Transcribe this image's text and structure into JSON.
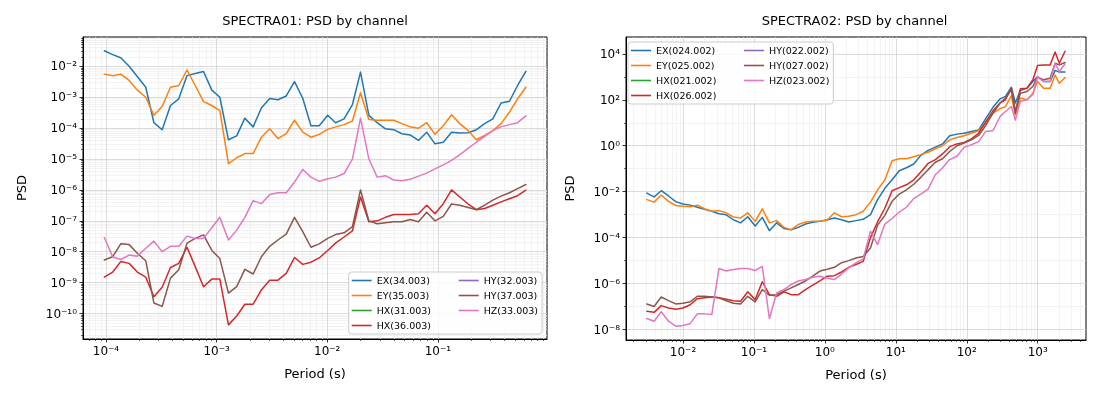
{
  "chart_data": [
    {
      "type": "line",
      "title": "SPECTRA01: PSD by channel",
      "xlabel": "Period (s)",
      "ylabel": "PSD",
      "log": "xy",
      "grid": true,
      "legend": "bottom right",
      "marker": "none",
      "line_style": "solid",
      "xlim": [
        6.2e-05,
        0.97
      ],
      "ylim": [
        1.5e-11,
        0.089
      ],
      "xticks": [
        {
          "value": 7e-05,
          "label": null
        },
        {
          "value": 8e-05,
          "label": null
        },
        {
          "value": 9e-05,
          "label": null
        },
        {
          "value": 0.0001,
          "label": "10⁻⁴"
        },
        {
          "value": 0.0002,
          "label": null
        },
        {
          "value": 0.0003,
          "label": null
        },
        {
          "value": 0.0004,
          "label": null
        },
        {
          "value": 0.0005,
          "label": null
        },
        {
          "value": 0.0006,
          "label": null
        },
        {
          "value": 0.0007,
          "label": null
        },
        {
          "value": 0.0008,
          "label": null
        },
        {
          "value": 0.0009,
          "label": null
        },
        {
          "value": 0.001,
          "label": "10⁻³"
        },
        {
          "value": 0.002,
          "label": null
        },
        {
          "value": 0.003,
          "label": null
        },
        {
          "value": 0.004,
          "label": null
        },
        {
          "value": 0.005,
          "label": null
        },
        {
          "value": 0.006,
          "label": null
        },
        {
          "value": 0.007,
          "label": null
        },
        {
          "value": 0.008,
          "label": null
        },
        {
          "value": 0.009,
          "label": null
        },
        {
          "value": 0.01,
          "label": "10⁻²"
        },
        {
          "value": 0.02,
          "label": null
        },
        {
          "value": 0.03,
          "label": null
        },
        {
          "value": 0.04,
          "label": null
        },
        {
          "value": 0.05,
          "label": null
        },
        {
          "value": 0.06,
          "label": null
        },
        {
          "value": 0.07,
          "label": null
        },
        {
          "value": 0.08,
          "label": null
        },
        {
          "value": 0.09,
          "label": null
        },
        {
          "value": 0.1,
          "label": "10⁻¹"
        },
        {
          "value": 0.2,
          "label": null
        },
        {
          "value": 0.3,
          "label": null
        },
        {
          "value": 0.4,
          "label": null
        },
        {
          "value": 0.5,
          "label": null
        },
        {
          "value": 0.6,
          "label": null
        },
        {
          "value": 0.7,
          "label": null
        },
        {
          "value": 0.8,
          "label": null
        },
        {
          "value": 0.9,
          "label": null
        }
      ],
      "yticks": [
        {
          "value": 2e-11,
          "label": null
        },
        {
          "value": 3e-11,
          "label": null
        },
        {
          "value": 4e-11,
          "label": null
        },
        {
          "value": 5e-11,
          "label": null
        },
        {
          "value": 6e-11,
          "label": null
        },
        {
          "value": 7e-11,
          "label": null
        },
        {
          "value": 8e-11,
          "label": null
        },
        {
          "value": 9e-11,
          "label": null
        },
        {
          "value": 1e-10,
          "label": "10⁻¹⁰"
        },
        {
          "value": 2e-10,
          "label": null
        },
        {
          "value": 3e-10,
          "label": null
        },
        {
          "value": 4e-10,
          "label": null
        },
        {
          "value": 5e-10,
          "label": null
        },
        {
          "value": 6e-10,
          "label": null
        },
        {
          "value": 7e-10,
          "label": null
        },
        {
          "value": 8e-10,
          "label": null
        },
        {
          "value": 9e-10,
          "label": null
        },
        {
          "value": 1e-09,
          "label": "10⁻⁹"
        },
        {
          "value": 2e-09,
          "label": null
        },
        {
          "value": 3e-09,
          "label": null
        },
        {
          "value": 4e-09,
          "label": null
        },
        {
          "value": 5e-09,
          "label": null
        },
        {
          "value": 6e-09,
          "label": null
        },
        {
          "value": 7e-09,
          "label": null
        },
        {
          "value": 8e-09,
          "label": null
        },
        {
          "value": 9e-09,
          "label": null
        },
        {
          "value": 1e-08,
          "label": "10⁻⁸"
        },
        {
          "value": 2e-08,
          "label": null
        },
        {
          "value": 3e-08,
          "label": null
        },
        {
          "value": 4e-08,
          "label": null
        },
        {
          "value": 5e-08,
          "label": null
        },
        {
          "value": 6e-08,
          "label": null
        },
        {
          "value": 7e-08,
          "label": null
        },
        {
          "value": 8e-08,
          "label": null
        },
        {
          "value": 9e-08,
          "label": null
        },
        {
          "value": 1e-07,
          "label": "10⁻⁷"
        },
        {
          "value": 2e-07,
          "label": null
        },
        {
          "value": 3e-07,
          "label": null
        },
        {
          "value": 4e-07,
          "label": null
        },
        {
          "value": 5e-07,
          "label": null
        },
        {
          "value": 6e-07,
          "label": null
        },
        {
          "value": 7e-07,
          "label": null
        },
        {
          "value": 8e-07,
          "label": null
        },
        {
          "value": 9e-07,
          "label": null
        },
        {
          "value": 1e-06,
          "label": "10⁻⁶"
        },
        {
          "value": 2e-06,
          "label": null
        },
        {
          "value": 3e-06,
          "label": null
        },
        {
          "value": 4e-06,
          "label": null
        },
        {
          "value": 5e-06,
          "label": null
        },
        {
          "value": 6e-06,
          "label": null
        },
        {
          "value": 7e-06,
          "label": null
        },
        {
          "value": 8e-06,
          "label": null
        },
        {
          "value": 9e-06,
          "label": null
        },
        {
          "value": 1e-05,
          "label": "10⁻⁵"
        },
        {
          "value": 2e-05,
          "label": null
        },
        {
          "value": 3e-05,
          "label": null
        },
        {
          "value": 4e-05,
          "label": null
        },
        {
          "value": 5e-05,
          "label": null
        },
        {
          "value": 6e-05,
          "label": null
        },
        {
          "value": 7e-05,
          "label": null
        },
        {
          "value": 8e-05,
          "label": null
        },
        {
          "value": 9e-05,
          "label": null
        },
        {
          "value": 0.0001,
          "label": "10⁻⁴"
        },
        {
          "value": 0.0002,
          "label": null
        },
        {
          "value": 0.0003,
          "label": null
        },
        {
          "value": 0.0004,
          "label": null
        },
        {
          "value": 0.0005,
          "label": null
        },
        {
          "value": 0.0006,
          "label": null
        },
        {
          "value": 0.0007,
          "label": null
        },
        {
          "value": 0.0008,
          "label": null
        },
        {
          "value": 0.0009,
          "label": null
        },
        {
          "value": 0.001,
          "label": "10⁻³"
        },
        {
          "value": 0.002,
          "label": null
        },
        {
          "value": 0.003,
          "label": null
        },
        {
          "value": 0.004,
          "label": null
        },
        {
          "value": 0.005,
          "label": null
        },
        {
          "value": 0.006,
          "label": null
        },
        {
          "value": 0.007,
          "label": null
        },
        {
          "value": 0.008,
          "label": null
        },
        {
          "value": 0.009,
          "label": null
        },
        {
          "value": 0.01,
          "label": "10⁻²"
        },
        {
          "value": 0.02,
          "label": null
        },
        {
          "value": 0.03,
          "label": null
        },
        {
          "value": 0.04,
          "label": null
        },
        {
          "value": 0.05,
          "label": null
        },
        {
          "value": 0.06,
          "label": null
        },
        {
          "value": 0.07,
          "label": null
        },
        {
          "value": 0.08,
          "label": null
        }
      ],
      "x": [
        9.66e-05,
        0.000115,
        0.000136,
        0.000162,
        0.000192,
        0.000229,
        0.000271,
        0.000322,
        0.000383,
        0.000455,
        0.00054,
        0.000641,
        0.000762,
        0.000905,
        0.00107,
        0.00128,
        0.00152,
        0.0018,
        0.00214,
        0.00254,
        0.00302,
        0.00358,
        0.00426,
        0.00506,
        0.00601,
        0.00713,
        0.00847,
        0.0101,
        0.0119,
        0.0142,
        0.0169,
        0.02,
        0.0238,
        0.0283,
        0.0336,
        0.0399,
        0.0473,
        0.0562,
        0.0668,
        0.0793,
        0.0942,
        0.112,
        0.133,
        0.158,
        0.188,
        0.223,
        0.265,
        0.314,
        0.373,
        0.444,
        0.526,
        0.625
      ],
      "series": [
        {
          "name": "EX(34.003)",
          "color": "#1f77b4",
          "values": [
            0.032,
            0.024,
            0.019,
            0.01,
            0.0047,
            0.0021,
            0.00015,
            8.9e-05,
            0.00054,
            0.00089,
            0.005,
            0.0059,
            0.0068,
            0.0017,
            0.001,
            4.2e-05,
            5.6e-05,
            0.00021,
            0.00011,
            0.00045,
            0.00091,
            0.00083,
            0.0011,
            0.0032,
            0.00093,
            0.00012,
            0.00012,
            0.00026,
            0.00015,
            0.0002,
            0.00058,
            0.0065,
            0.00026,
            0.00015,
            9.5e-05,
            8.9e-05,
            6.6e-05,
            6e-05,
            4e-05,
            7.4e-05,
            3.1e-05,
            3.5e-05,
            7.4e-05,
            6.9e-05,
            7.1e-05,
            8.9e-05,
            0.00014,
            0.0002,
            0.00065,
            0.00074,
            0.0024,
            0.0069
          ]
        },
        {
          "name": "EY(35.003)",
          "color": "#ff7f0e",
          "values": [
            0.0056,
            0.005,
            0.0056,
            0.0035,
            0.0017,
            0.001,
            0.00026,
            0.0005,
            0.0021,
            0.0024,
            0.0076,
            0.0024,
            0.00072,
            0.00054,
            0.00037,
            7.1e-06,
            1.1e-05,
            1.5e-05,
            1.5e-05,
            5.1e-05,
            9.5e-05,
            4.6e-05,
            6.6e-05,
            0.00018,
            7.4e-05,
            5.1e-05,
            6.3e-05,
            9.1e-05,
            0.00011,
            0.00013,
            0.00017,
            0.0014,
            0.00019,
            0.00018,
            0.00018,
            0.00018,
            0.00014,
            0.00011,
            0.0001,
            0.00015,
            6.3e-05,
            0.00012,
            0.00027,
            0.00014,
            8.3e-05,
            4.2e-05,
            5.8e-05,
            8.3e-05,
            0.00014,
            0.00033,
            0.00089,
            0.0021
          ]
        },
        {
          "name": "HX(31.003)",
          "color": "#2ca02c",
          "values": [
            null,
            null,
            null,
            null,
            null,
            null,
            null,
            null,
            null,
            null,
            null,
            null,
            null,
            null,
            null,
            null,
            null,
            null,
            null,
            null,
            null,
            null,
            null,
            null,
            null,
            null,
            null,
            null,
            null,
            null,
            null,
            null,
            null,
            null,
            null,
            null,
            null,
            null,
            null,
            null,
            null,
            null,
            null,
            null,
            null,
            null,
            null,
            null,
            null,
            null,
            null,
            null
          ]
        },
        {
          "name": "HX(36.003)",
          "color": "#d62728",
          "values": [
            1.5e-09,
            2.2e-09,
            4.8e-09,
            4.2e-09,
            2.2e-09,
            1.5e-09,
            3.5e-10,
            7.1e-10,
            3.1e-09,
            4.2e-09,
            1.4e-08,
            3.3e-09,
            7.4e-10,
            1.3e-09,
            1.3e-09,
            4.3e-11,
            8.3e-11,
            2e-10,
            2e-10,
            5.8e-10,
            1.2e-09,
            1.2e-09,
            2e-09,
            6.5e-09,
            3.9e-09,
            4.6e-09,
            6.3e-09,
            1.1e-08,
            1.9e-08,
            3e-08,
            4.7e-08,
            5.9e-07,
            9.3e-08,
            1e-07,
            1.3e-07,
            1.6e-07,
            1.6e-07,
            1.6e-07,
            1.7e-07,
            3.2e-07,
            1.7e-07,
            3.6e-07,
            1e-06,
            5.9e-07,
            3.5e-07,
            2.3e-07,
            2.5e-07,
            3.2e-07,
            4.1e-07,
            5.2e-07,
            6.5e-07,
            9.8e-07
          ]
        },
        {
          "name": "HY(32.003)",
          "color": "#9467bd",
          "values": [
            null,
            null,
            null,
            null,
            null,
            null,
            null,
            null,
            null,
            null,
            null,
            null,
            null,
            null,
            null,
            null,
            null,
            null,
            null,
            null,
            null,
            null,
            null,
            null,
            null,
            null,
            null,
            null,
            null,
            null,
            null,
            null,
            null,
            null,
            null,
            null,
            null,
            null,
            null,
            null,
            null,
            null,
            null,
            null,
            null,
            null,
            null,
            null,
            null,
            null,
            null,
            null
          ]
        },
        {
          "name": "HY(37.003)",
          "color": "#8c564b",
          "values": [
            5.4e-09,
            6.9e-09,
            1.8e-08,
            1.7e-08,
            8.9e-09,
            5.1e-09,
            2.2e-10,
            1.7e-10,
            1.4e-09,
            2.6e-09,
            1.9e-08,
            2.7e-08,
            3.5e-08,
            1.1e-08,
            6e-09,
            4.6e-10,
            7.4e-10,
            2.7e-09,
            1.9e-09,
            6.9e-09,
            1.5e-08,
            2.4e-08,
            3.7e-08,
            1.3e-07,
            4.5e-08,
            1.4e-08,
            1.8e-08,
            2.7e-08,
            3.6e-08,
            4.1e-08,
            6.5e-08,
            1e-06,
            1e-07,
            8.1e-08,
            8.7e-08,
            9.3e-08,
            9.3e-08,
            1.1e-07,
            9.3e-08,
            1.9e-07,
            1e-07,
            1.4e-07,
            3.5e-07,
            3.2e-07,
            2.7e-07,
            2.3e-07,
            3.2e-07,
            4.7e-07,
            6.3e-07,
            8.1e-07,
            1.1e-06,
            1.5e-06
          ]
        },
        {
          "name": "HZ(33.003)",
          "color": "#e377c2",
          "values": [
            2.9e-08,
            6.9e-09,
            5.6e-09,
            7.8e-09,
            7.2e-09,
            1.3e-08,
            2.2e-08,
            1e-08,
            1.5e-08,
            1.5e-08,
            3.2e-08,
            2.7e-08,
            2.7e-08,
            6e-08,
            1.3e-07,
            2.4e-08,
            5e-08,
            1.3e-07,
            4.5e-07,
            3.6e-07,
            7.1e-07,
            8.1e-07,
            8.1e-07,
            1.8e-06,
            4.6e-06,
            2.6e-06,
            1.9e-06,
            2.3e-06,
            2.6e-06,
            3.4e-06,
            1e-05,
            0.00021,
            1e-05,
            2.6e-06,
            2.9e-06,
            2.1e-06,
            2e-06,
            2.2e-06,
            2.8e-06,
            3.5e-06,
            4.8e-06,
            6.5e-06,
            9.1e-06,
            1.4e-05,
            2.2e-05,
            3.5e-05,
            5.4e-05,
            8.3e-05,
            0.00011,
            0.00013,
            0.00015,
            0.00025
          ]
        }
      ]
    },
    {
      "type": "line",
      "title": "SPECTRA02: PSD by channel",
      "xlabel": "Period (s)",
      "ylabel": "PSD",
      "log": "xy",
      "grid": true,
      "legend": "top left",
      "marker": "none",
      "line_style": "solid",
      "xlim": [
        0.00157,
        4800.0
      ],
      "ylim": [
        3.5e-09,
        54000.0
      ],
      "xticks": [
        {
          "value": 0.002,
          "label": null
        },
        {
          "value": 0.003,
          "label": null
        },
        {
          "value": 0.004,
          "label": null
        },
        {
          "value": 0.005,
          "label": null
        },
        {
          "value": 0.006,
          "label": null
        },
        {
          "value": 0.007,
          "label": null
        },
        {
          "value": 0.008,
          "label": null
        },
        {
          "value": 0.009,
          "label": null
        },
        {
          "value": 0.01,
          "label": "10⁻²"
        },
        {
          "value": 0.02,
          "label": null
        },
        {
          "value": 0.03,
          "label": null
        },
        {
          "value": 0.04,
          "label": null
        },
        {
          "value": 0.05,
          "label": null
        },
        {
          "value": 0.06,
          "label": null
        },
        {
          "value": 0.07,
          "label": null
        },
        {
          "value": 0.08,
          "label": null
        },
        {
          "value": 0.09,
          "label": null
        },
        {
          "value": 0.1,
          "label": "10⁻¹"
        },
        {
          "value": 0.2,
          "label": null
        },
        {
          "value": 0.3,
          "label": null
        },
        {
          "value": 0.4,
          "label": null
        },
        {
          "value": 0.5,
          "label": null
        },
        {
          "value": 0.6,
          "label": null
        },
        {
          "value": 0.7,
          "label": null
        },
        {
          "value": 0.8,
          "label": null
        },
        {
          "value": 0.9,
          "label": null
        },
        {
          "value": 1,
          "label": "10⁰"
        },
        {
          "value": 2,
          "label": null
        },
        {
          "value": 3,
          "label": null
        },
        {
          "value": 4,
          "label": null
        },
        {
          "value": 5,
          "label": null
        },
        {
          "value": 6,
          "label": null
        },
        {
          "value": 7,
          "label": null
        },
        {
          "value": 8,
          "label": null
        },
        {
          "value": 9,
          "label": null
        },
        {
          "value": 10,
          "label": "10¹"
        },
        {
          "value": 20,
          "label": null
        },
        {
          "value": 30,
          "label": null
        },
        {
          "value": 40,
          "label": null
        },
        {
          "value": 50,
          "label": null
        },
        {
          "value": 60,
          "label": null
        },
        {
          "value": 70,
          "label": null
        },
        {
          "value": 80,
          "label": null
        },
        {
          "value": 90,
          "label": null
        },
        {
          "value": 100,
          "label": "10²"
        },
        {
          "value": 200,
          "label": null
        },
        {
          "value": 300,
          "label": null
        },
        {
          "value": 400,
          "label": null
        },
        {
          "value": 500,
          "label": null
        },
        {
          "value": 600,
          "label": null
        },
        {
          "value": 700,
          "label": null
        },
        {
          "value": 800,
          "label": null
        },
        {
          "value": 900,
          "label": null
        },
        {
          "value": 1000,
          "label": "10³"
        },
        {
          "value": 2000,
          "label": null
        },
        {
          "value": 3000,
          "label": null
        },
        {
          "value": 4000,
          "label": null
        }
      ],
      "yticks": [
        {
          "value": 1e-08,
          "label": "10⁻⁸"
        },
        {
          "value": 1e-07,
          "label": null
        },
        {
          "value": 1e-06,
          "label": "10⁻⁶"
        },
        {
          "value": 1e-05,
          "label": null
        },
        {
          "value": 0.0001,
          "label": "10⁻⁴"
        },
        {
          "value": 0.001,
          "label": null
        },
        {
          "value": 0.01,
          "label": "10⁻²"
        },
        {
          "value": 0.1,
          "label": null
        },
        {
          "value": 1,
          "label": "10⁰"
        },
        {
          "value": 10,
          "label": null
        },
        {
          "value": 100,
          "label": "10²"
        },
        {
          "value": 1000,
          "label": null
        },
        {
          "value": 10000,
          "label": "10⁴"
        }
      ],
      "x": [
        0.00309,
        0.00391,
        0.00493,
        0.00624,
        0.00788,
        0.00996,
        0.0126,
        0.0159,
        0.0201,
        0.0254,
        0.0321,
        0.0406,
        0.0513,
        0.0648,
        0.0818,
        0.104,
        0.131,
        0.165,
        0.209,
        0.264,
        0.334,
        0.422,
        0.533,
        0.673,
        0.851,
        1.08,
        1.36,
        1.72,
        2.17,
        2.74,
        3.47,
        4.39,
        5.53,
        7.0,
        8.85,
        11.2,
        14.1,
        17.9,
        22.5,
        28.5,
        36.1,
        45.5,
        57.5,
        72.8,
        91.8,
        116,
        147,
        185,
        234,
        296,
        351,
        426,
        484,
        569,
        706,
        856,
        995,
        1210,
        1500,
        1760,
        2020,
        2430
      ],
      "series": [
        {
          "name": "EX(024.002)",
          "color": "#1f77b4",
          "values": [
            0.0087,
            0.0059,
            0.011,
            0.0065,
            0.0037,
            0.0029,
            0.0026,
            0.0021,
            0.0017,
            0.0014,
            0.0011,
            0.00098,
            0.0006,
            0.00044,
            0.00081,
            0.00032,
            0.00076,
            0.0002,
            0.00044,
            0.00025,
            0.00022,
            0.00028,
            0.00039,
            0.00047,
            0.00051,
            0.0006,
            0.00072,
            0.0006,
            0.00048,
            0.00055,
            0.00063,
            0.001,
            0.0045,
            0.014,
            0.033,
            0.081,
            0.11,
            0.16,
            0.38,
            0.63,
            0.87,
            1.2,
            2.7,
            3.2,
            3.5,
            4.2,
            4.8,
            15,
            47,
            110,
            140,
            350,
            72,
            250,
            320,
            630,
            1000,
            630,
            630,
            1900,
            1600,
            1600
          ]
        },
        {
          "name": "EY(025.002)",
          "color": "#ff7f0e",
          "values": [
            0.0045,
            0.0035,
            0.0072,
            0.0038,
            0.0025,
            0.0023,
            0.0022,
            0.0026,
            0.0018,
            0.0014,
            0.0015,
            0.0012,
            0.00079,
            0.00072,
            0.0012,
            0.00051,
            0.0018,
            0.00044,
            0.00055,
            0.00028,
            0.00022,
            0.00037,
            0.00048,
            0.00051,
            0.00051,
            0.00059,
            0.0012,
            0.00081,
            0.00085,
            0.001,
            0.0014,
            0.0035,
            0.012,
            0.032,
            0.22,
            0.27,
            0.27,
            0.33,
            0.41,
            0.52,
            0.74,
            1.0,
            1.8,
            2.3,
            2.7,
            3.5,
            4.5,
            9.8,
            26,
            41,
            50,
            150,
            22,
            120,
            100,
            190,
            630,
            320,
            320,
            1200,
            520,
            930
          ]
        },
        {
          "name": "HX(021.002)",
          "color": "#2ca02c",
          "values": [
            null,
            null,
            null,
            null,
            null,
            null,
            null,
            null,
            null,
            null,
            null,
            null,
            null,
            null,
            null,
            null,
            null,
            null,
            null,
            null,
            null,
            null,
            null,
            null,
            null,
            null,
            null,
            null,
            null,
            null,
            null,
            null,
            null,
            null,
            null,
            null,
            null,
            null,
            null,
            null,
            null,
            null,
            null,
            null,
            null,
            null,
            null,
            null,
            null,
            null,
            null,
            null,
            null,
            null,
            null,
            null,
            null,
            null,
            null,
            null,
            null,
            null
          ]
        },
        {
          "name": "HX(026.002)",
          "color": "#d62728",
          "values": [
            6.3e-08,
            5.6e-08,
            1.1e-07,
            8.7e-08,
            7.6e-08,
            8.7e-08,
            1.2e-07,
            2.2e-07,
            2.4e-07,
            2.6e-07,
            2.4e-07,
            2.1e-07,
            1.8e-07,
            1.7e-07,
            4.4e-07,
            2e-07,
            1.2e-06,
            3.3e-07,
            2.8e-07,
            4.4e-07,
            3.3e-07,
            3.3e-07,
            5.5e-07,
            8.5e-07,
            1.3e-06,
            2.1e-06,
            2.2e-06,
            3.2e-06,
            5.1e-06,
            6.8e-06,
            9.3e-06,
            0.0001,
            0.00048,
            0.0019,
            0.011,
            0.015,
            0.02,
            0.033,
            0.072,
            0.17,
            0.25,
            0.44,
            0.91,
            1.2,
            1.4,
            2.0,
            3.5,
            11,
            33,
            74,
            100,
            320,
            26,
            300,
            320,
            740,
            3100,
            3300,
            3300,
            12000,
            3900,
            13000
          ]
        },
        {
          "name": "HY(022.002)",
          "color": "#9467bd",
          "values": [
            null,
            null,
            null,
            null,
            null,
            null,
            null,
            null,
            null,
            null,
            null,
            null,
            null,
            null,
            null,
            null,
            null,
            null,
            null,
            null,
            null,
            null,
            null,
            null,
            null,
            null,
            null,
            null,
            null,
            null,
            null,
            null,
            null,
            null,
            null,
            null,
            null,
            null,
            null,
            null,
            null,
            null,
            null,
            null,
            null,
            null,
            null,
            null,
            null,
            null,
            null,
            null,
            null,
            null,
            null,
            null,
            null,
            null,
            null,
            null,
            null,
            null
          ]
        },
        {
          "name": "HY(027.002)",
          "color": "#8c564b",
          "values": [
            1.3e-07,
            1e-07,
            2.6e-07,
            1.8e-07,
            1.3e-07,
            1.4e-07,
            1.6e-07,
            2.8e-07,
            2.8e-07,
            2.6e-07,
            2.4e-07,
            1.8e-07,
            1.4e-07,
            1.3e-07,
            2.8e-07,
            1.6e-07,
            5.5e-07,
            3.1e-07,
            3.3e-07,
            4.7e-07,
            6.5e-07,
            9.1e-07,
            1.3e-06,
            2.1e-06,
            3.5e-06,
            4.2e-06,
            5.1e-06,
            8.1e-06,
            1e-05,
            1.3e-05,
            1.5e-05,
            3.5e-05,
            0.00035,
            0.00093,
            0.0038,
            0.0079,
            0.012,
            0.021,
            0.042,
            0.091,
            0.19,
            0.27,
            0.56,
            1.0,
            1.3,
            1.8,
            2.8,
            7.6,
            26,
            72,
            120,
            270,
            31,
            190,
            230,
            380,
            1000,
            740,
            870,
            3900,
            3300,
            4200
          ]
        },
        {
          "name": "HZ(023.002)",
          "color": "#e377c2",
          "values": [
            3e-08,
            2.3e-08,
            5.9e-08,
            2.3e-08,
            1.4e-08,
            1.5e-08,
            1.8e-08,
            4.8e-08,
            4.8e-08,
            4.5e-08,
            4.5e-06,
            3.5e-06,
            4.1e-06,
            4.5e-06,
            4.5e-06,
            3.7e-06,
            5.6e-06,
            3e-08,
            3.9e-07,
            5.5e-07,
            9.1e-07,
            1.3e-06,
            1.5e-06,
            1.9e-06,
            2.1e-06,
            1.7e-06,
            1.5e-06,
            2.6e-06,
            4.8e-06,
            7.9e-06,
            1.2e-05,
            0.00019,
            5e-05,
            0.00039,
            0.00068,
            0.0013,
            0.0021,
            0.005,
            0.0079,
            0.013,
            0.055,
            0.11,
            0.25,
            0.35,
            0.85,
            1.1,
            1.5,
            4.2,
            4.5,
            19,
            31,
            51,
            13,
            85,
            100,
            170,
            1000,
            630,
            630,
            3900,
            1700,
            3700
          ]
        }
      ]
    }
  ]
}
